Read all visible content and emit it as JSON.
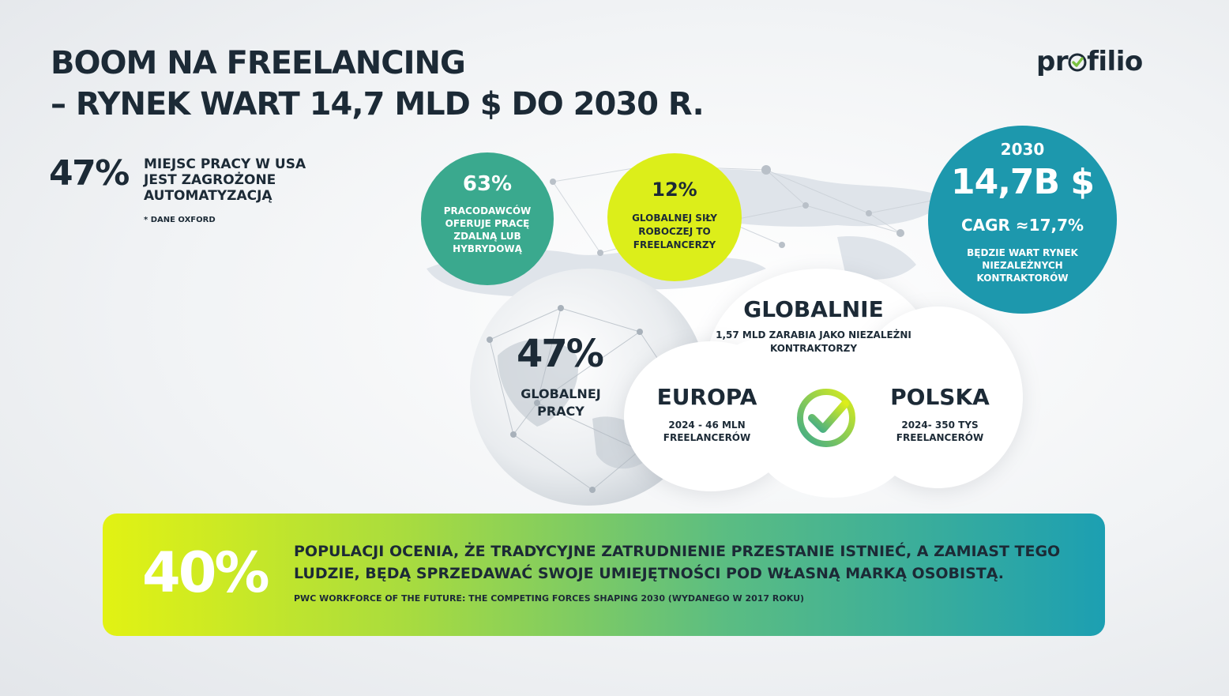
{
  "title": {
    "line1": "BOOM NA FREELANCING",
    "line2": "– RYNEK WART 14,7 MLD $ DO 2030 R."
  },
  "logo": {
    "left": "pr",
    "right": "filio",
    "brand_color": "#1c2a36",
    "check_color": "#7cc242"
  },
  "usa_stat": {
    "value": "47%",
    "text": "MIEJSC PRACY W USA JEST ZAGROŻONE AUTOMATYZACJĄ",
    "source": "* DANE OXFORD"
  },
  "circle_63": {
    "value": "63%",
    "text": "PRACODAWCÓW OFERUJE PRACĘ ZDALNĄ LUB HYBRYDOWĄ",
    "color": "#3aa98e"
  },
  "circle_12": {
    "value": "12%",
    "text": "GLOBALNEJ SIŁY ROBOCZEJ TO FREELANCERZY",
    "color": "#dcee1a"
  },
  "circle_2030": {
    "year": "2030",
    "value": "14,7B $",
    "cagr": "CAGR ≈17,7%",
    "text": "BĘDZIE WART RYNEK NIEZALEŻNYCH KONTRAKTORÓW",
    "color": "#1d98ad"
  },
  "globe_stat": {
    "value": "47%",
    "text": "GLOBALNEJ PRACY"
  },
  "global": {
    "title": "GLOBALNIE",
    "text": "1,57 MLD ZARABIA JAKO NIEZALEŻNI KONTRAKTORZY"
  },
  "europe": {
    "title": "EUROPA",
    "text": "2024 - 46 MLN FREELANCERÓW"
  },
  "poland": {
    "title": "POLSKA",
    "text": "2024- 350 TYS FREELANCERÓW"
  },
  "banner": {
    "value": "40%",
    "text": "POPULACJI OCENIA, ŻE TRADYCYJNE ZATRUDNIENIE PRZESTANIE ISTNIEĆ, A ZAMIAST TEGO LUDZIE, BĘDĄ SPRZEDAWAĆ SWOJE UMIEJĘTNOŚCI POD WŁASNĄ MARKĄ OSOBISTĄ.",
    "source": "PWC WORKFORCE OF THE FUTURE: THE COMPETING FORCES SHAPING 2030 (WYDANEGO W 2017 ROKU)"
  },
  "icons": [
    "check-icon",
    "globe-network-icon"
  ]
}
